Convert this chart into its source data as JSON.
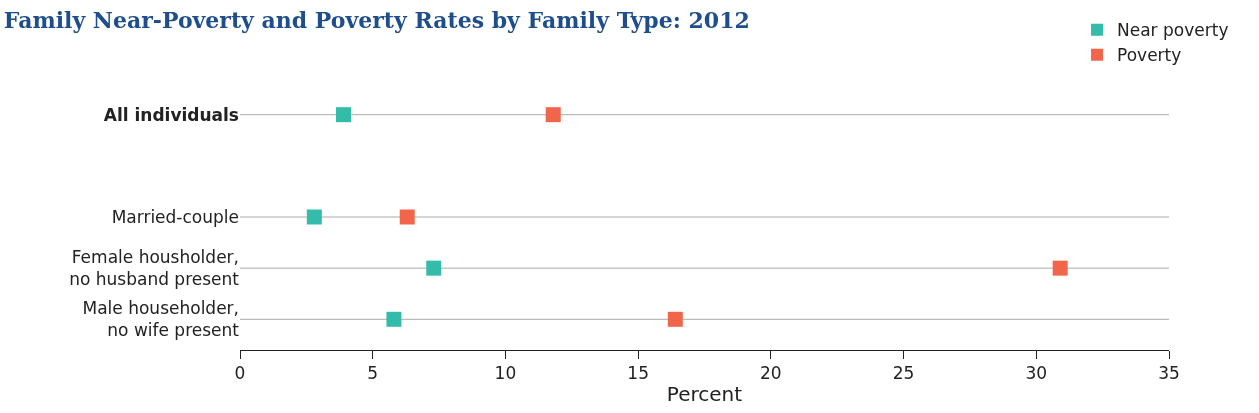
{
  "chart_data": {
    "type": "scatter",
    "title": "Family Near-Poverty and Poverty Rates by Family Type: 2012",
    "xlabel": "Percent",
    "orientation": "horizontal",
    "categories": [
      "All individuals",
      null,
      "Married-couple",
      "Female housholder,\nno husband present",
      "Male householder,\nno wife present"
    ],
    "series": [
      {
        "name": "Near poverty",
        "color": "#33bca9",
        "values": [
          3.9,
          null,
          2.8,
          7.3,
          5.8
        ]
      },
      {
        "name": "Poverty",
        "color": "#f1654a",
        "values": [
          11.8,
          null,
          6.3,
          30.9,
          16.4
        ]
      }
    ],
    "xlim": [
      0,
      35
    ],
    "xticks": [
      0,
      5,
      10,
      15,
      20,
      25,
      30,
      35
    ],
    "grid": "y",
    "legend": "top right",
    "marker": "square"
  }
}
